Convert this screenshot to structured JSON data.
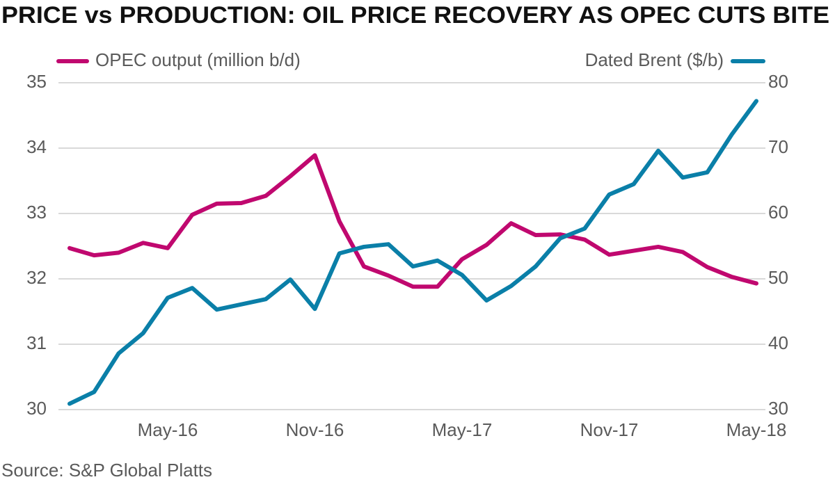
{
  "chart_data": {
    "type": "line",
    "title": "PRICE vs PRODUCTION: OIL PRICE RECOVERY AS OPEC CUTS BITE",
    "source": "Source: S&P Global Platts",
    "categories": [
      null,
      null,
      null,
      null,
      "May-16",
      null,
      null,
      null,
      null,
      null,
      "Nov-16",
      null,
      null,
      null,
      null,
      null,
      "May-17",
      null,
      null,
      null,
      null,
      null,
      "Nov-17",
      null,
      null,
      null,
      null,
      null,
      "May-18"
    ],
    "series": [
      {
        "name": "OPEC output (million b/d)",
        "color": "#c0086f",
        "axis": "y",
        "values": [
          32.47,
          32.36,
          32.4,
          32.55,
          32.47,
          32.98,
          33.15,
          33.16,
          33.27,
          33.57,
          33.89,
          32.88,
          32.19,
          32.05,
          31.88,
          31.88,
          32.3,
          32.52,
          32.85,
          32.67,
          32.68,
          32.6,
          32.37,
          32.43,
          32.49,
          32.41,
          32.18,
          32.03,
          31.93
        ]
      },
      {
        "name": "Dated Brent ($/b)",
        "color": "#0a7fa8",
        "axis": "y2",
        "values": [
          30.9,
          32.7,
          38.6,
          41.7,
          47.1,
          48.6,
          45.3,
          46.1,
          46.9,
          49.9,
          45.4,
          53.9,
          54.9,
          55.3,
          51.9,
          52.8,
          50.6,
          46.7,
          48.9,
          51.9,
          56.2,
          57.7,
          62.9,
          64.5,
          69.6,
          65.5,
          66.3,
          72.1,
          77.2
        ]
      }
    ],
    "ylim": [
      30,
      35
    ],
    "yticks": [
      30,
      31,
      32,
      33,
      34,
      35
    ],
    "y2lim": [
      30,
      80
    ],
    "y2ticks": [
      30,
      40,
      50,
      60,
      70,
      80
    ],
    "grid": true
  }
}
